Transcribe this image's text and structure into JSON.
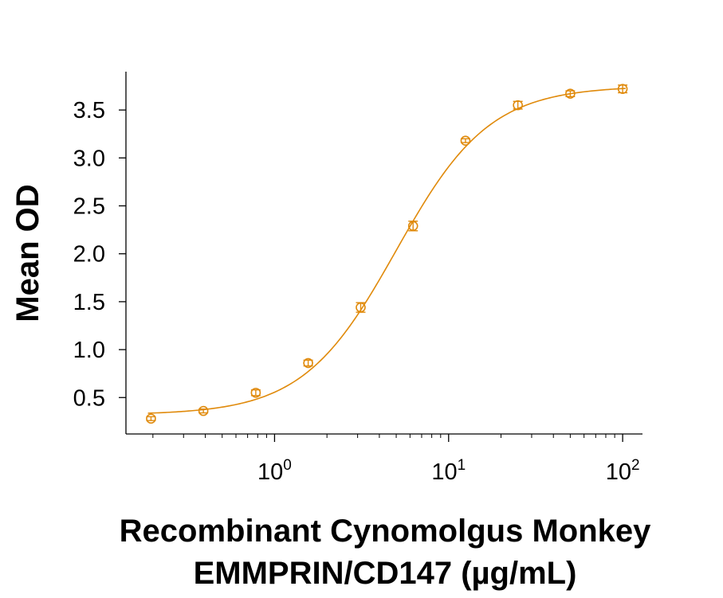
{
  "chart_data": {
    "type": "scatter",
    "title": "",
    "ylabel": "Mean OD",
    "xlabel_lines": [
      "Recombinant Cynomolgus Monkey",
      "EMMPRIN/CD147 (µg/mL)"
    ],
    "x_scale": "log",
    "xlim": [
      0.14,
      130
    ],
    "ylim": [
      0.12,
      3.9
    ],
    "x_ticks": [
      {
        "value": 1,
        "base": "10",
        "exp": "0"
      },
      {
        "value": 10,
        "base": "10",
        "exp": "1"
      },
      {
        "value": 100,
        "base": "10",
        "exp": "2"
      }
    ],
    "y_ticks": [
      {
        "value": 0.5,
        "label": "0.5"
      },
      {
        "value": 1.0,
        "label": "1.0"
      },
      {
        "value": 1.5,
        "label": "1.5"
      },
      {
        "value": 2.0,
        "label": "2.0"
      },
      {
        "value": 2.5,
        "label": "2.5"
      },
      {
        "value": 3.0,
        "label": "3.0"
      },
      {
        "value": 3.5,
        "label": "3.5"
      }
    ],
    "grid": false,
    "legend": "none",
    "series": [
      {
        "color": "#E08A0B",
        "marker": "open-circle",
        "x": [
          0.195,
          0.39,
          0.78,
          1.56,
          3.125,
          6.25,
          12.5,
          25,
          50,
          100
        ],
        "y": [
          0.28,
          0.36,
          0.55,
          0.86,
          1.44,
          2.29,
          3.18,
          3.55,
          3.67,
          3.72
        ],
        "error": [
          0.02,
          0.02,
          0.03,
          0.03,
          0.05,
          0.05,
          0.02,
          0.04,
          0.03,
          0.04
        ]
      }
    ],
    "fit_curve": {
      "model": "4PL",
      "bottom": 0.32,
      "top": 3.75,
      "ec50": 5.0,
      "hill": 1.62,
      "color": "#E08A0B"
    }
  }
}
